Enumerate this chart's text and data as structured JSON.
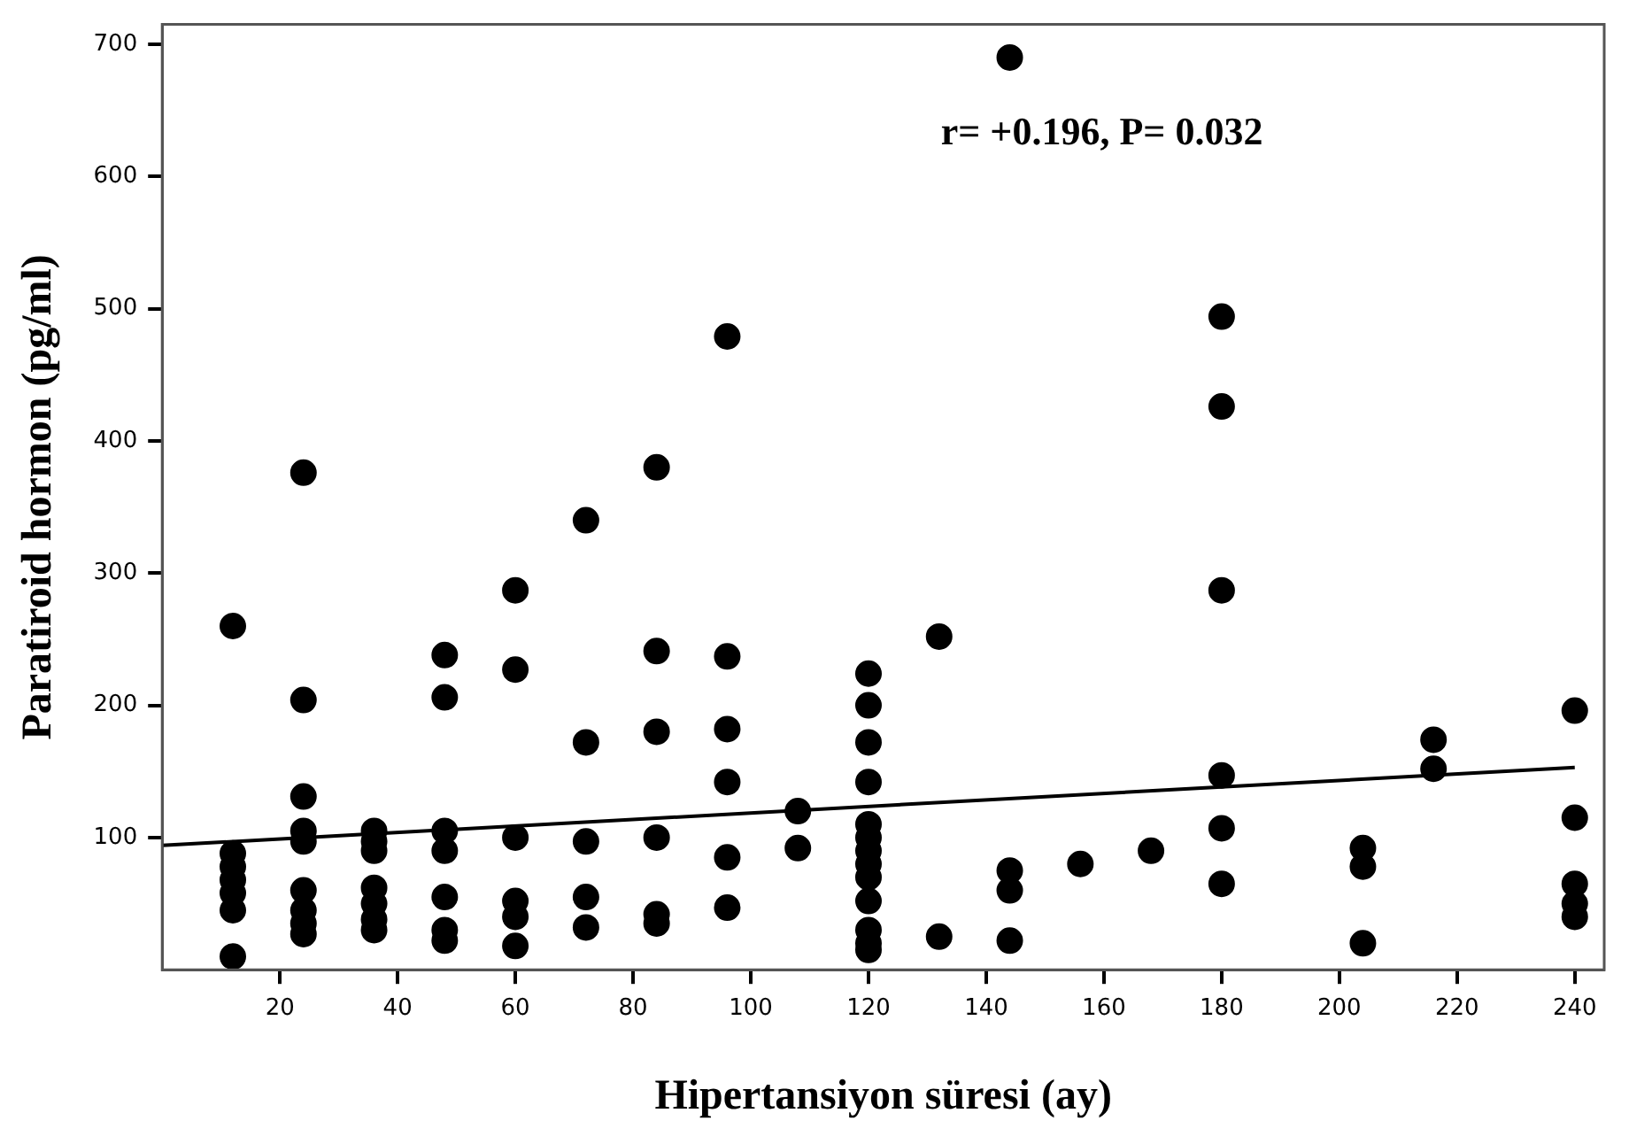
{
  "chart_data": {
    "type": "scatter",
    "xlabel": "Hipertansiyon süresi (ay)",
    "ylabel": "Paratiroid hormon (pg/ml)",
    "annotations": [
      "r= +0.196, P= 0.032"
    ],
    "xlim": [
      0,
      245
    ],
    "xticks": [
      20,
      40,
      60,
      80,
      100,
      120,
      140,
      160,
      180,
      200,
      220,
      240
    ],
    "ylim": [
      0,
      715
    ],
    "yticks": [
      100,
      200,
      300,
      400,
      500,
      600,
      700
    ],
    "grid": false,
    "legend": false,
    "marker": "circle",
    "series": [
      {
        "color": "#000000",
        "x": [
          12,
          12,
          12,
          12,
          12,
          12,
          12,
          24,
          24,
          24,
          24,
          24,
          24,
          24,
          24,
          24,
          36,
          36,
          36,
          36,
          36,
          36,
          36,
          48,
          48,
          48,
          48,
          48,
          48,
          48,
          60,
          60,
          60,
          60,
          60,
          60,
          72,
          72,
          72,
          72,
          72,
          84,
          84,
          84,
          84,
          84,
          84,
          96,
          96,
          96,
          96,
          96,
          96,
          108,
          108,
          120,
          120,
          120,
          120,
          120,
          120,
          120,
          120,
          120,
          120,
          120,
          120,
          120,
          132,
          132,
          144,
          144,
          144,
          144,
          156,
          168,
          180,
          180,
          180,
          180,
          180,
          180,
          204,
          204,
          204,
          216,
          216,
          240,
          240,
          240,
          240,
          240
        ],
        "values": [
          260,
          88,
          78,
          68,
          58,
          45,
          10,
          376,
          204,
          131,
          105,
          97,
          60,
          45,
          35,
          27,
          105,
          97,
          90,
          62,
          50,
          38,
          30,
          238,
          206,
          105,
          90,
          55,
          30,
          22,
          287,
          227,
          100,
          52,
          40,
          18,
          340,
          172,
          97,
          55,
          32,
          380,
          241,
          180,
          100,
          42,
          35,
          479,
          237,
          182,
          142,
          85,
          47,
          120,
          92,
          224,
          200,
          172,
          142,
          110,
          100,
          90,
          80,
          70,
          52,
          30,
          20,
          15,
          252,
          25,
          690,
          75,
          60,
          22,
          80,
          90,
          494,
          426,
          287,
          147,
          107,
          65,
          92,
          78,
          20,
          174,
          152,
          196,
          115,
          65,
          50,
          40
        ]
      },
      {
        "type": "line",
        "color": "#000000",
        "x": [
          0,
          240
        ],
        "values": [
          94,
          153
        ],
        "marker": "none"
      }
    ]
  }
}
